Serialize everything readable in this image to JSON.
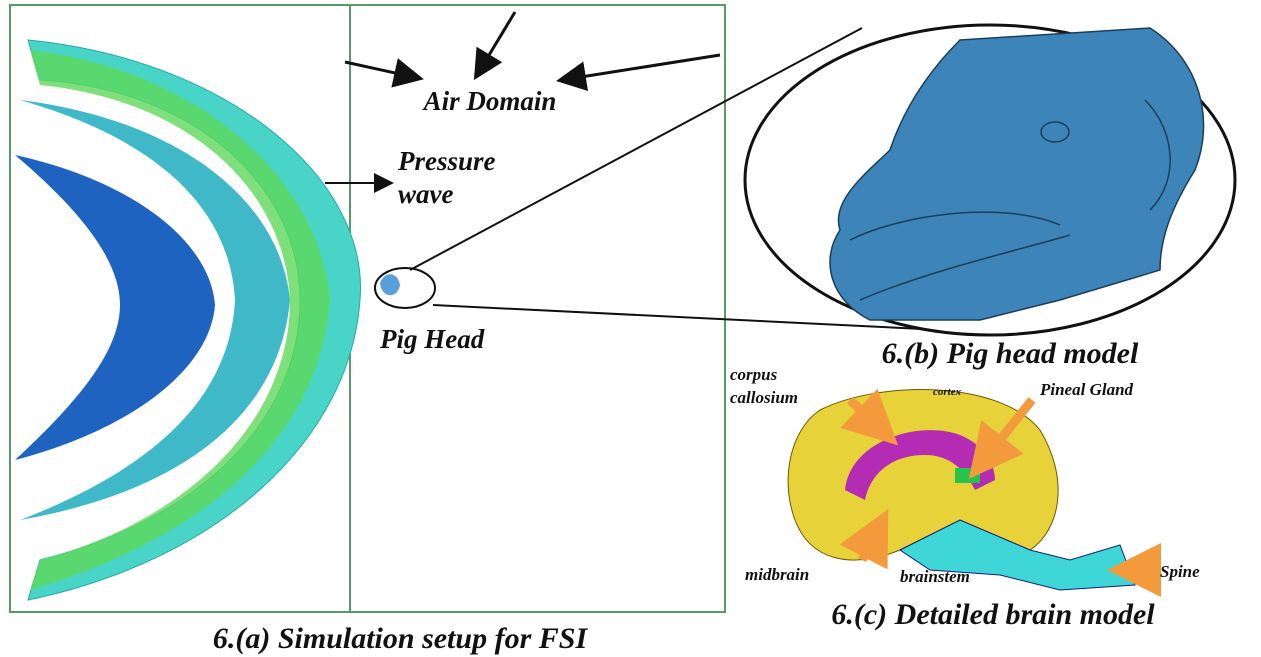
{
  "panel_a": {
    "caption": "6.(a) Simulation setup for FSI",
    "air_domain": "Air Domain",
    "pressure_wave": [
      "Pressure",
      "wave"
    ],
    "pig_head": "Pig Head"
  },
  "panel_b": {
    "caption": "6.(b) Pig head model"
  },
  "panel_c": {
    "caption": "6.(c) Detailed brain model",
    "labels": {
      "corpus_callosium": [
        "corpus",
        "callosium"
      ],
      "cortex": "cortex",
      "pineal_gland": "Pineal Gland",
      "midbrain": "midbrain",
      "brainstem": "brainstem",
      "spine": "Spine"
    }
  }
}
